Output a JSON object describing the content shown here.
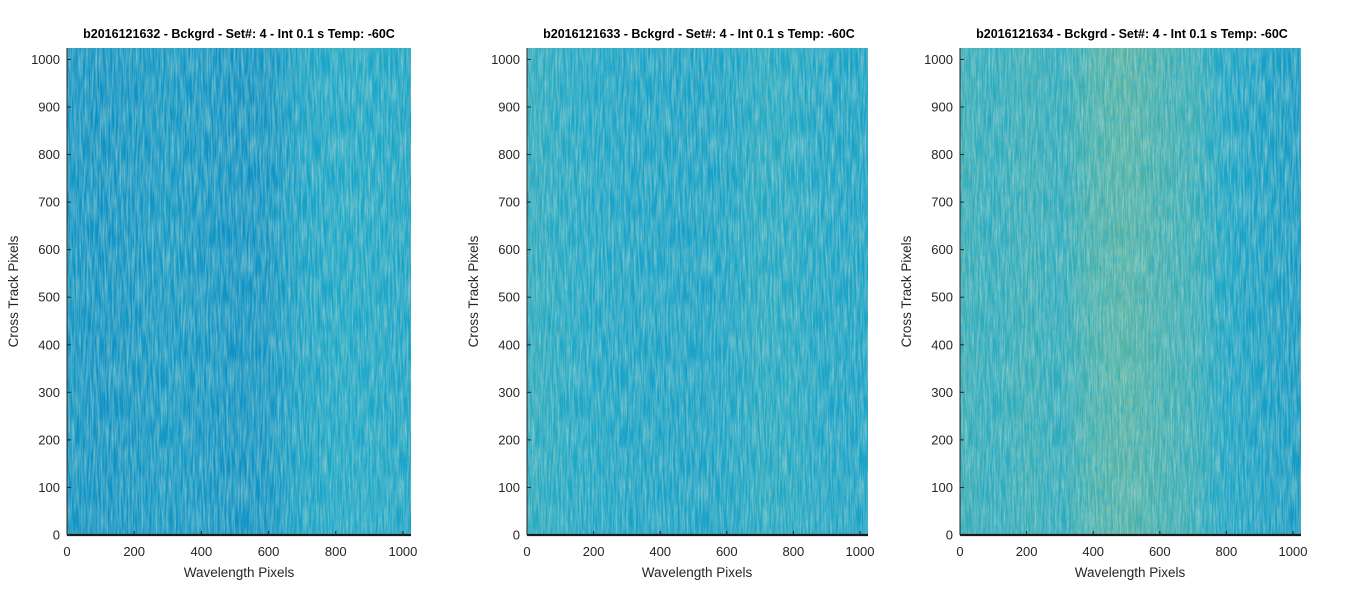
{
  "figure": {
    "background": "#ffffff",
    "colors": {
      "low": "#0072bd",
      "mid": "#1fa6c6",
      "high": "#b5c76a",
      "baseline": "#1a1a1a"
    }
  },
  "chart_data": [
    {
      "type": "heatmap",
      "title": "b2016121632 - Bckgrd - Set#: 4 - Int 0.1 s Temp: -60C",
      "xlabel": "Wavelength Pixels",
      "ylabel": "Cross Track Pixels",
      "xlim": [
        0,
        1024
      ],
      "ylim": [
        0,
        1024
      ],
      "xticks": [
        0,
        200,
        400,
        600,
        800,
        1000
      ],
      "yticks": [
        0,
        100,
        200,
        300,
        400,
        500,
        600,
        700,
        800,
        900,
        1000
      ],
      "grid": false,
      "colormap": "parula",
      "column_profile": {
        "x": [
          0,
          100,
          200,
          300,
          400,
          500,
          600,
          650,
          700,
          800,
          900,
          1024
        ],
        "level": [
          0.3,
          0.27,
          0.3,
          0.34,
          0.31,
          0.27,
          0.3,
          0.38,
          0.44,
          0.5,
          0.5,
          0.46
        ]
      }
    },
    {
      "type": "heatmap",
      "title": "b2016121633 - Bckgrd - Set#: 4 - Int 0.1 s Temp: -60C",
      "xlabel": "Wavelength Pixels",
      "ylabel": "Cross Track Pixels",
      "xlim": [
        0,
        1024
      ],
      "ylim": [
        0,
        1024
      ],
      "xticks": [
        0,
        200,
        400,
        600,
        800,
        1000
      ],
      "yticks": [
        0,
        100,
        200,
        300,
        400,
        500,
        600,
        700,
        800,
        900,
        1000
      ],
      "grid": false,
      "colormap": "parula",
      "column_profile": {
        "x": [
          0,
          100,
          200,
          300,
          400,
          500,
          600,
          700,
          800,
          900,
          1024
        ],
        "level": [
          0.56,
          0.52,
          0.48,
          0.45,
          0.44,
          0.43,
          0.45,
          0.53,
          0.52,
          0.46,
          0.44
        ]
      }
    },
    {
      "type": "heatmap",
      "title": "b2016121634 - Bckgrd - Set#: 4 - Int 0.1 s Temp: -60C",
      "xlabel": "Wavelength Pixels",
      "ylabel": "Cross Track Pixels",
      "xlim": [
        0,
        1024
      ],
      "ylim": [
        0,
        1024
      ],
      "xticks": [
        0,
        200,
        400,
        600,
        800,
        1000
      ],
      "yticks": [
        0,
        100,
        200,
        300,
        400,
        500,
        600,
        700,
        800,
        900,
        1000
      ],
      "grid": false,
      "colormap": "parula",
      "column_profile": {
        "x": [
          0,
          100,
          200,
          300,
          400,
          500,
          600,
          700,
          800,
          900,
          1024
        ],
        "level": [
          0.6,
          0.56,
          0.6,
          0.56,
          0.66,
          0.7,
          0.64,
          0.6,
          0.47,
          0.41,
          0.36
        ]
      }
    }
  ]
}
